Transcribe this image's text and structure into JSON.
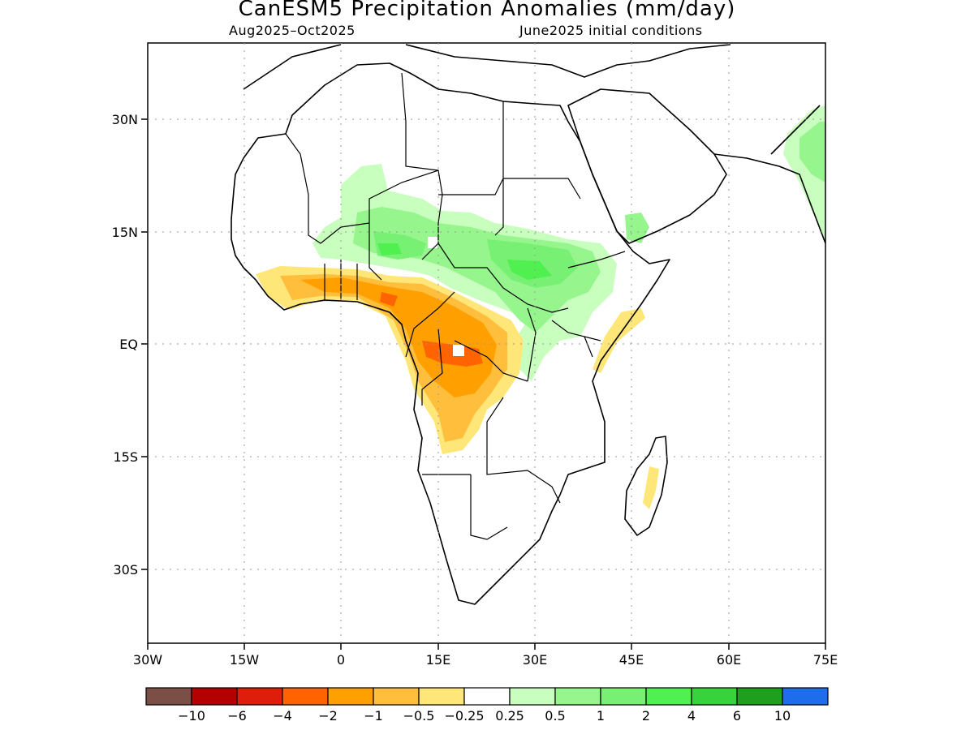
{
  "title": "CanESM5 Precipitation Anomalies (mm/day)",
  "subtitle_left": "Aug2025–Oct2025",
  "subtitle_right": "June2025 initial conditions",
  "lat_labels": [
    "30N",
    "15N",
    "EQ",
    "15S",
    "30S"
  ],
  "lon_labels": [
    "30W",
    "15W",
    "0",
    "15E",
    "30E",
    "45E",
    "60E",
    "75E"
  ],
  "colorbar": {
    "colors": [
      "#7b4f45",
      "#b30000",
      "#dc1e0a",
      "#ff6400",
      "#ffa000",
      "#ffbe3c",
      "#ffe678",
      "#ffffff",
      "#c8ffbe",
      "#96f58c",
      "#78f073",
      "#50f050",
      "#37d23c",
      "#1ea01e",
      "#1e6eeb"
    ],
    "labels": [
      "−10",
      "−6",
      "−4",
      "−2",
      "−1",
      "−0.5",
      "−0.25",
      "0.25",
      "0.5",
      "1",
      "2",
      "4",
      "6",
      "10"
    ]
  }
}
